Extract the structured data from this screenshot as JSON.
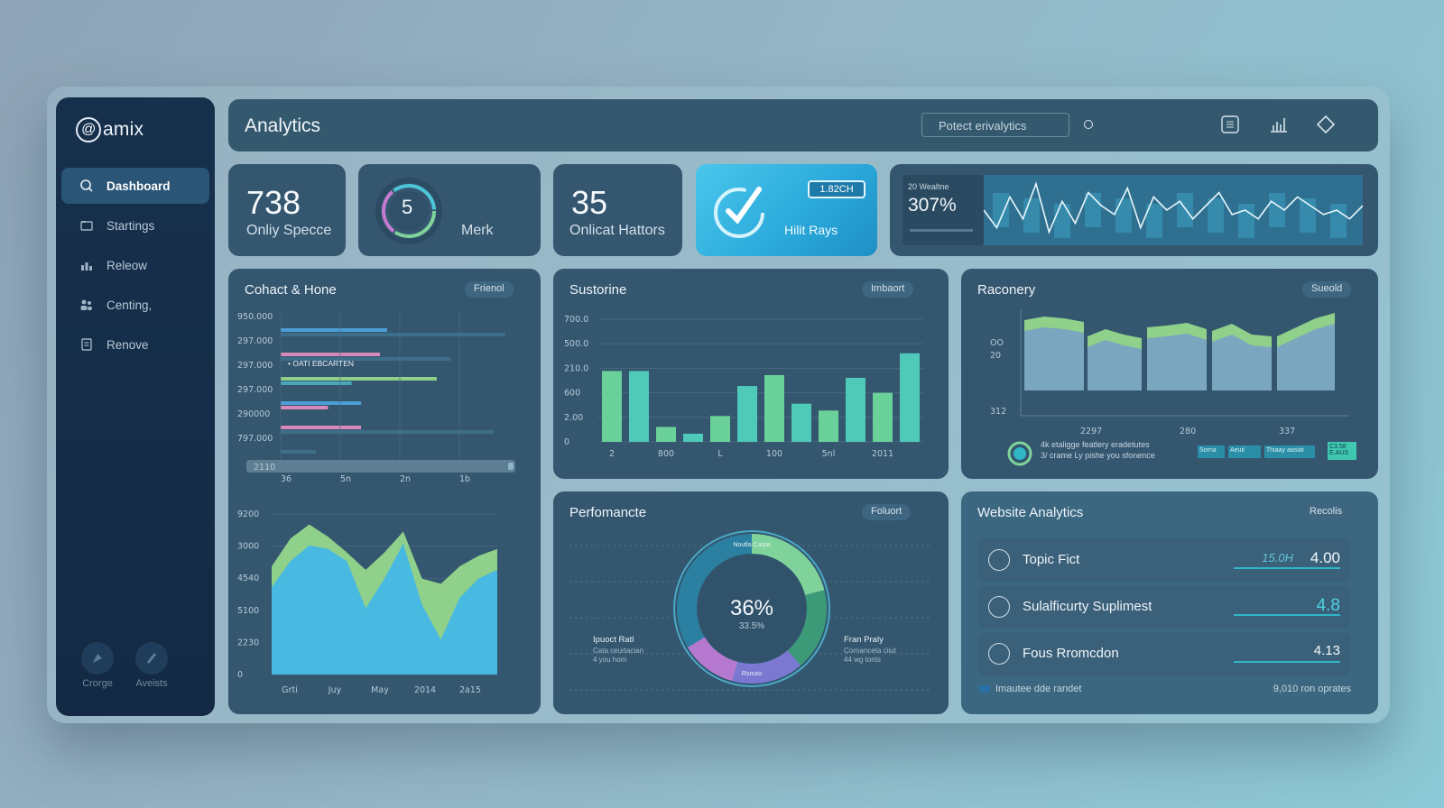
{
  "app": {
    "logo_text": "amix",
    "logo_mark": "@"
  },
  "sidebar": {
    "items": [
      {
        "label": "Dashboard",
        "icon": "search-icon"
      },
      {
        "label": "Startings",
        "icon": "folder-icon"
      },
      {
        "label": "Releow",
        "icon": "chart-icon"
      },
      {
        "label": "Centing,",
        "icon": "users-icon"
      },
      {
        "label": "Renove",
        "icon": "document-icon"
      }
    ],
    "bottom": [
      {
        "label": "Crorge"
      },
      {
        "label": "Aveists"
      }
    ]
  },
  "header": {
    "title": "Analytics",
    "search_placeholder": "Potect erivalytics"
  },
  "stats": [
    {
      "value": "738",
      "label": "Onliy Specce"
    },
    {
      "value": "5",
      "label": "Merk"
    },
    {
      "value": "35",
      "label": "Onlicat Hattors"
    },
    {
      "value": "1.82CH",
      "label": "Hilit Rays"
    },
    {
      "value": "307%",
      "label": "20 Wealtne"
    }
  ],
  "panels": {
    "contact": {
      "title": "Cohact & Hone",
      "pill": "Frienol",
      "ylabels": [
        "950.000",
        "297.000",
        "297.000",
        "297.000",
        "290000",
        "797.000"
      ],
      "xlabels": [
        "36",
        "5n",
        "2n",
        "1b"
      ],
      "annotation": "OATI EBCARTEN",
      "scroll_label": "2110",
      "area_ylabels": [
        "9200",
        "3000",
        "4540",
        "5100",
        "2230",
        "0"
      ],
      "area_xlabels": [
        "Grti",
        "Juy",
        "May",
        "2014",
        "2a15"
      ]
    },
    "sustorine": {
      "title": "Sustorine",
      "pill": "Imbaort",
      "ylabels": [
        "700.0",
        "500.0",
        "210.0",
        "600",
        "2.00",
        "0"
      ],
      "xlabels": [
        "2",
        "800",
        "L",
        "100",
        "5nl",
        "2011"
      ]
    },
    "raconery": {
      "title": "Raconery",
      "pill": "Sueold",
      "ylabels": [
        "OO",
        "20",
        "312"
      ],
      "xlabels": [
        "2297",
        "280",
        "337"
      ],
      "legend_text_1": "4k etaligge featlery eradetutes",
      "legend_text_2": "3/ crame Ly pishe you sfonence",
      "chips": [
        "Sorna",
        "Aeuti",
        "Thiaay aasiat"
      ],
      "badge": "C3.58 E.AUS"
    },
    "performance": {
      "title": "Perfomancte",
      "pill": "Foluort",
      "donut_value": "36%",
      "donut_sub": "33.5%",
      "ring_top": "Noutla Carpa",
      "ring_bottom": "Rsnuto",
      "left_title": "Ipuoct Ratl",
      "left_sub_1": "Cata ceurtacian",
      "left_sub_2": "4 you hom",
      "right_title": "Fran Praly",
      "right_sub_1": "Cornanceta ciiut",
      "right_sub_2": "44 wg tonts"
    },
    "website": {
      "title": "Website Analytics",
      "pill": "Recolis",
      "rows": [
        {
          "name": "Topic Fict",
          "value": "4.00",
          "sub": "15.0H"
        },
        {
          "name": "Sulalficurty Suplimest",
          "value": "4.8",
          "sub": ""
        },
        {
          "name": "Fous Rromcdon",
          "value": "4.13",
          "sub": ""
        }
      ],
      "footer_left": "Imautee dde randet",
      "footer_right": "9,010 ron oprates"
    }
  },
  "chart_data": [
    {
      "type": "bar",
      "title": "Sustorine",
      "categories": [
        "2",
        "",
        "800",
        "",
        "L",
        "",
        "100",
        "",
        "5nl",
        "",
        "2011",
        ""
      ],
      "values": [
        520,
        520,
        110,
        60,
        190,
        410,
        490,
        280,
        230,
        470,
        360,
        650
      ],
      "ylim": [
        0,
        900
      ]
    },
    {
      "type": "area",
      "title": "Cohact & Hone",
      "x": [
        0,
        1,
        2,
        3,
        4,
        5,
        6,
        7,
        8,
        9,
        10,
        11,
        12
      ],
      "series": [
        {
          "values": [
            6200,
            7800,
            8600,
            7900,
            7000,
            6000,
            7000,
            8200,
            5500,
            5200,
            6200,
            6800,
            7200
          ]
        },
        {
          "values": [
            5000,
            6500,
            7400,
            7200,
            6500,
            3800,
            5500,
            7500,
            4000,
            2000,
            4400,
            5500,
            6000
          ]
        }
      ]
    },
    {
      "type": "line",
      "title": "307%",
      "values": [
        40,
        20,
        55,
        30,
        70,
        15,
        50,
        25,
        60,
        45,
        35,
        65,
        20,
        55,
        40,
        50,
        30,
        45,
        60,
        35,
        40,
        30,
        50,
        40,
        55,
        45,
        35,
        40,
        30,
        45
      ]
    }
  ]
}
